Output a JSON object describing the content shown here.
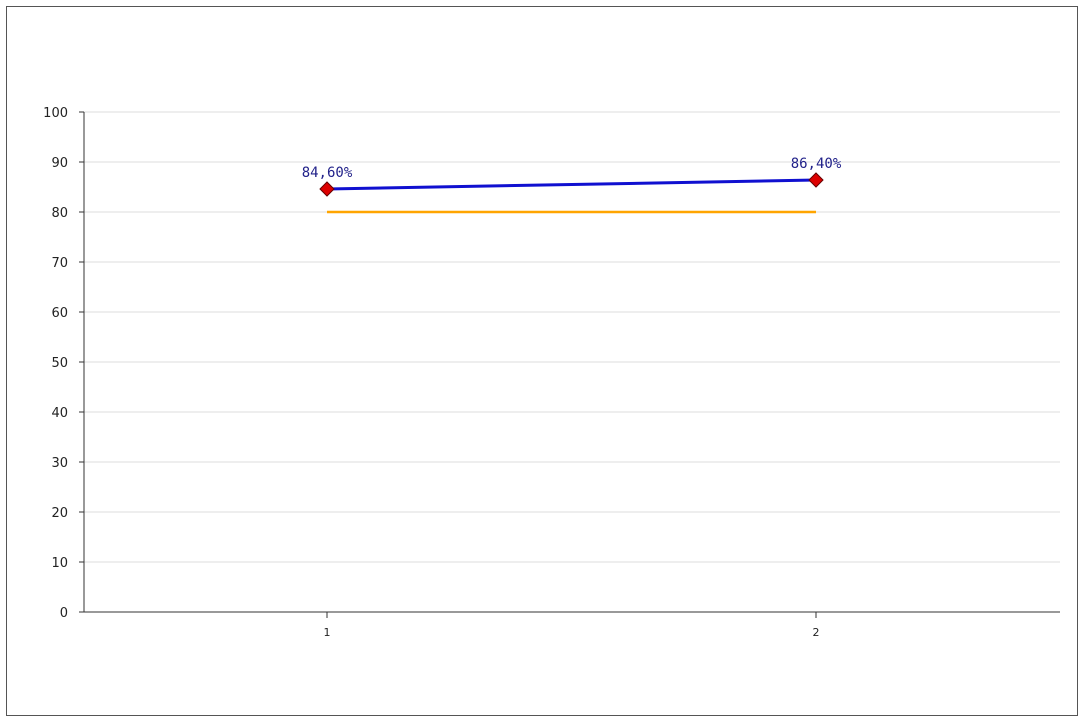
{
  "chart_data": {
    "type": "line",
    "title": "",
    "xlabel": "",
    "ylabel": "",
    "categories": [
      "1",
      "2"
    ],
    "ylim": [
      0,
      100
    ],
    "yticks": [
      0,
      10,
      20,
      30,
      40,
      50,
      60,
      70,
      80,
      90,
      100
    ],
    "grid": true,
    "legend": "none",
    "series": [
      {
        "values": [
          84.6,
          86.4
        ],
        "data_labels": [
          "84,60%",
          "86,40%"
        ],
        "color": "#1010d0",
        "marker": "diamond",
        "marker_color": "#dd0000"
      },
      {
        "values": [
          80,
          80
        ],
        "color": "#ffa500"
      }
    ],
    "grid_color": "#dddddd",
    "axis_color": "#333333",
    "label_color": "#22228a"
  }
}
